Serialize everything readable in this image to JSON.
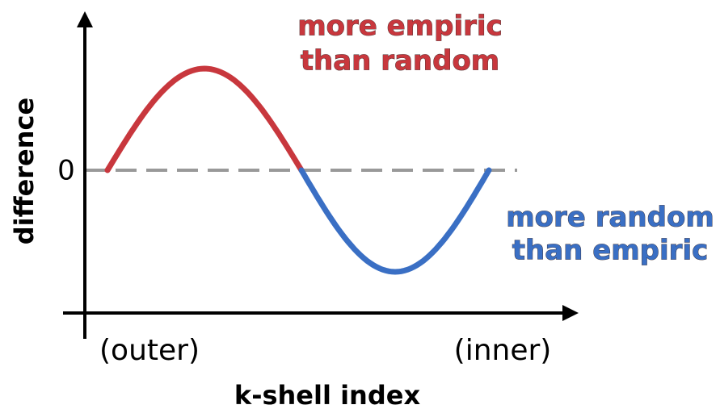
{
  "y_axis_label": "difference",
  "zero_label": "0",
  "x_axis_label": "k-shell index",
  "x_left_label": "(outer)",
  "x_right_label": "(inner)",
  "annotation_top": [
    "more empiric",
    "than random"
  ],
  "annotation_bottom": [
    "more random",
    "than empiric"
  ]
}
